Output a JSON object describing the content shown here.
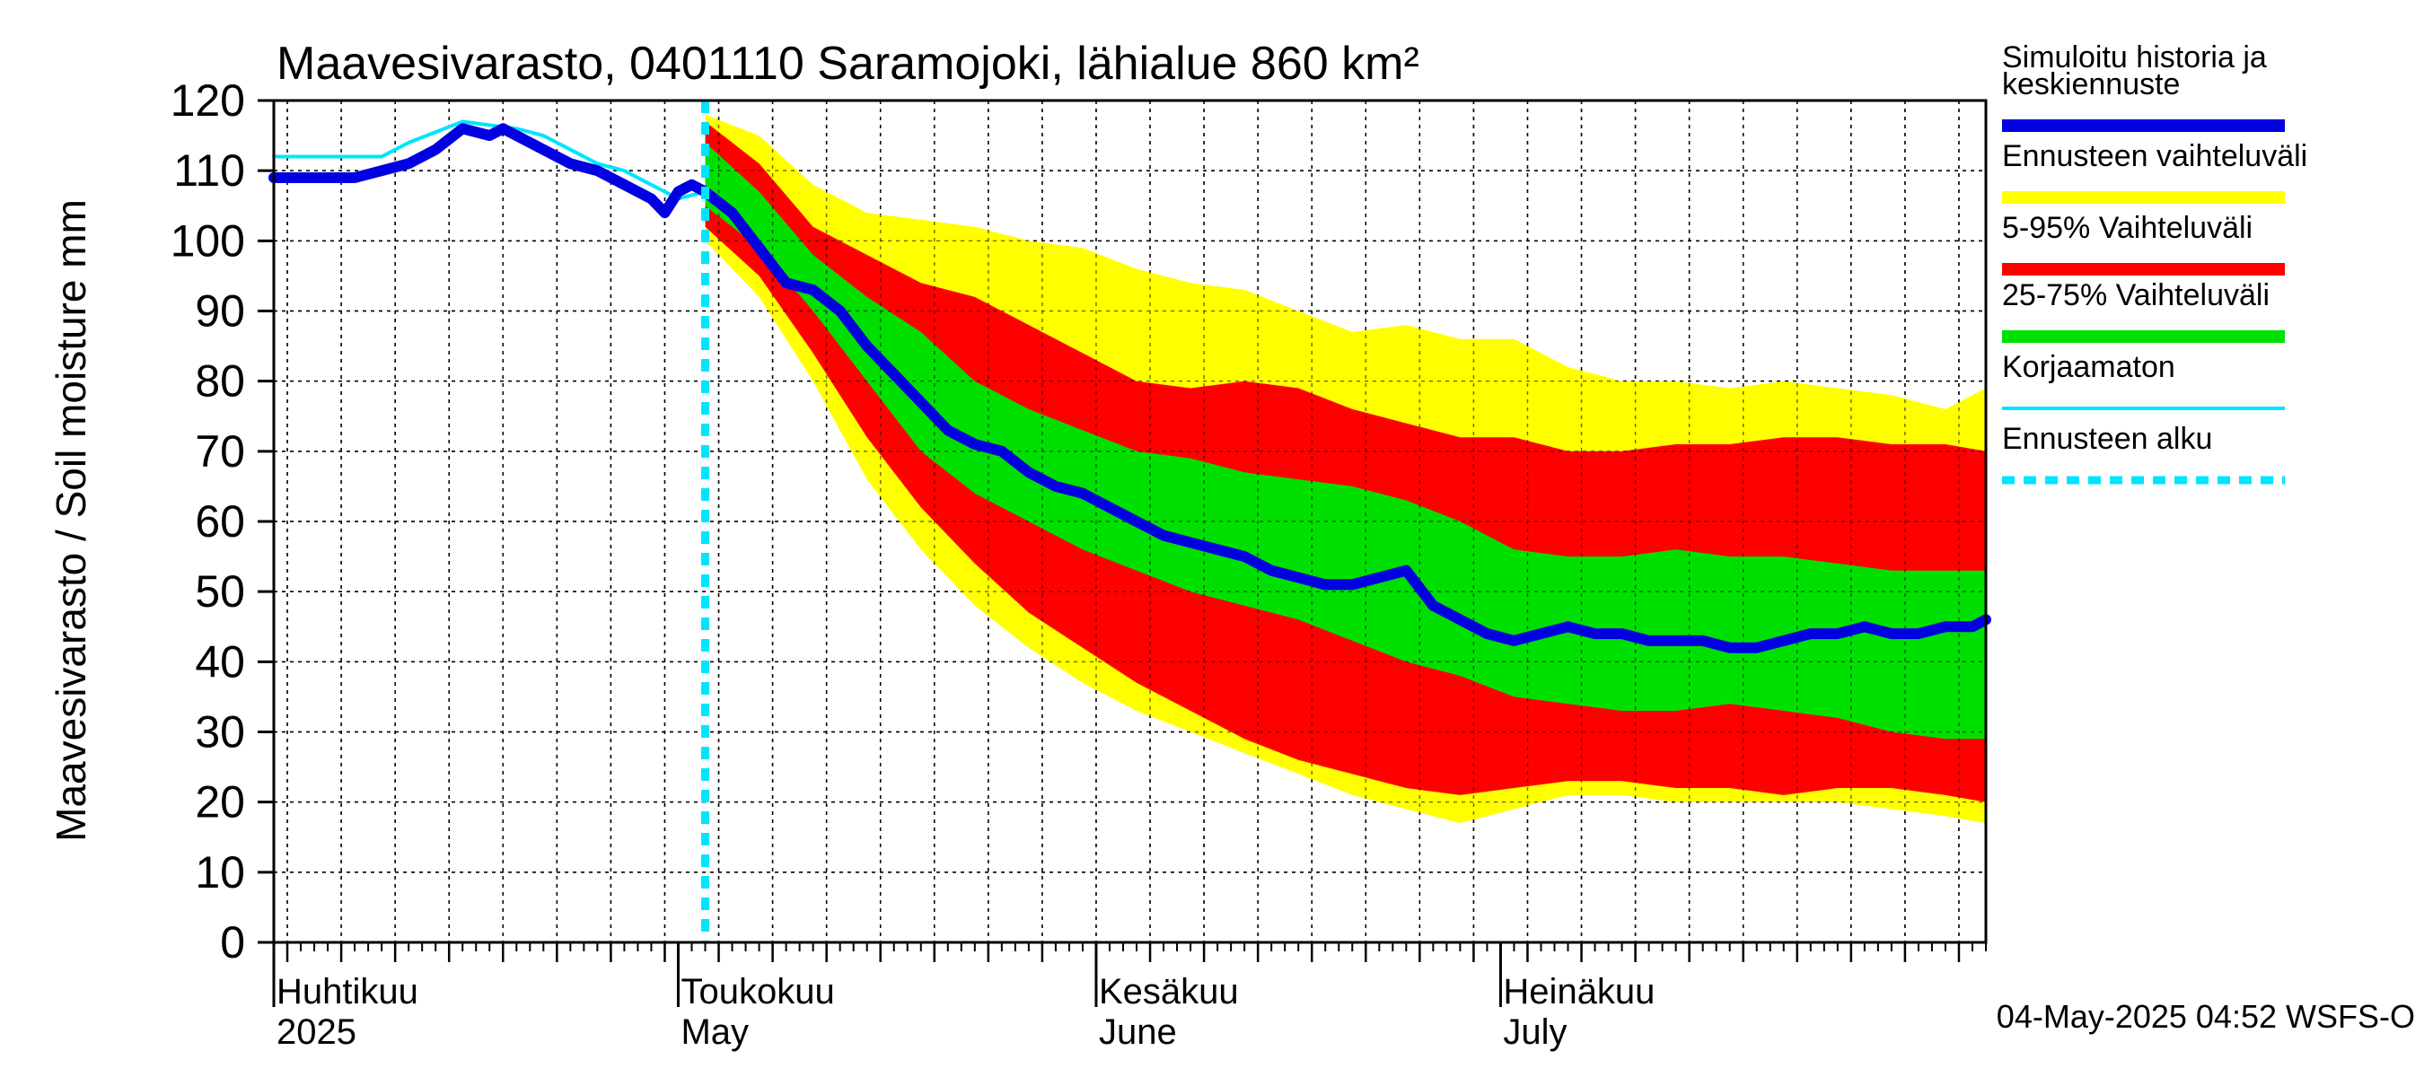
{
  "chart_data": {
    "type": "area",
    "title": "Maavesivarasto, 0401110 Saramojoki, lähialue 860 km²",
    "ylabel": "Maavesivarasto / Soil moisture   mm",
    "xlabel": "",
    "ylim": [
      0,
      120
    ],
    "yticks": [
      0,
      10,
      20,
      30,
      40,
      50,
      60,
      70,
      80,
      90,
      100,
      110,
      120
    ],
    "grid": true,
    "x_unit": "day index from 2025-03-30",
    "xlim": [
      0,
      127
    ],
    "month_labels": [
      {
        "day": 0,
        "fi": "Huhtikuu",
        "en": "2025"
      },
      {
        "day": 30,
        "fi": "Toukokuu",
        "en": "May"
      },
      {
        "day": 61,
        "fi": "Kesäkuu",
        "en": "June"
      },
      {
        "day": 91,
        "fi": "Heinäkuu",
        "en": "July"
      }
    ],
    "forecast_start_day": 32,
    "legend_position": "right",
    "legend": [
      {
        "label": "Simuloitu historia ja keskiennuste",
        "color": "#0000e0",
        "style": "thick"
      },
      {
        "label": "Ennusteen vaihteluväli",
        "color": "#ffff00",
        "style": "thick"
      },
      {
        "label": "5-95% Vaihteluväli",
        "color": "#ff0000",
        "style": "thick"
      },
      {
        "label": "25-75% Vaihteluväli",
        "color": "#00e000",
        "style": "thick"
      },
      {
        "label": "Korjaamaton",
        "color": "#00e5ff",
        "style": "thin"
      },
      {
        "label": "Ennusteen alku",
        "color": "#00e5ff",
        "style": "dashed"
      }
    ],
    "series": [
      {
        "name": "Ennusteen vaihteluväli",
        "kind": "band",
        "color": "#ffff00",
        "x": [
          32,
          36,
          40,
          44,
          48,
          52,
          56,
          60,
          64,
          68,
          72,
          76,
          80,
          84,
          88,
          92,
          96,
          100,
          104,
          108,
          112,
          116,
          120,
          124,
          127
        ],
        "upper": [
          118,
          115,
          108,
          104,
          103,
          102,
          100,
          99,
          96,
          94,
          93,
          90,
          87,
          88,
          86,
          86,
          82,
          80,
          80,
          79,
          80,
          79,
          78,
          76,
          79
        ],
        "lower": [
          100,
          92,
          80,
          66,
          56,
          48,
          42,
          37,
          33,
          30,
          27,
          24,
          21,
          19,
          17,
          19,
          21,
          21,
          20,
          20,
          20,
          20,
          19,
          18,
          17
        ]
      },
      {
        "name": "5-95% Vaihteluväli",
        "kind": "band",
        "color": "#ff0000",
        "x": [
          32,
          36,
          40,
          44,
          48,
          52,
          56,
          60,
          64,
          68,
          72,
          76,
          80,
          84,
          88,
          92,
          96,
          100,
          104,
          108,
          112,
          116,
          120,
          124,
          127
        ],
        "upper": [
          117,
          111,
          102,
          98,
          94,
          92,
          88,
          84,
          80,
          79,
          80,
          79,
          76,
          74,
          72,
          72,
          70,
          70,
          71,
          71,
          72,
          72,
          71,
          71,
          70
        ],
        "lower": [
          102,
          95,
          84,
          72,
          62,
          54,
          47,
          42,
          37,
          33,
          29,
          26,
          24,
          22,
          21,
          22,
          23,
          23,
          22,
          22,
          21,
          22,
          22,
          21,
          20
        ]
      },
      {
        "name": "25-75% Vaihteluväli",
        "kind": "band",
        "color": "#00e000",
        "x": [
          32,
          36,
          40,
          44,
          48,
          52,
          56,
          60,
          64,
          68,
          72,
          76,
          80,
          84,
          88,
          92,
          96,
          100,
          104,
          108,
          112,
          116,
          120,
          124,
          127
        ],
        "upper": [
          114,
          107,
          98,
          92,
          87,
          80,
          76,
          73,
          70,
          69,
          67,
          66,
          65,
          63,
          60,
          56,
          55,
          55,
          56,
          55,
          55,
          54,
          53,
          53,
          53
        ],
        "lower": [
          105,
          99,
          90,
          80,
          70,
          64,
          60,
          56,
          53,
          50,
          48,
          46,
          43,
          40,
          38,
          35,
          34,
          33,
          33,
          34,
          33,
          32,
          30,
          29,
          29
        ]
      },
      {
        "name": "Korjaamaton",
        "kind": "line",
        "color": "#00e5ff",
        "x": [
          0,
          4,
          8,
          10,
          14,
          18,
          20,
          22,
          24,
          26,
          28,
          30,
          32
        ],
        "y": [
          112,
          112,
          112,
          114,
          117,
          116,
          115,
          113,
          111,
          110,
          108,
          106,
          107
        ]
      },
      {
        "name": "Simuloitu historia ja keskiennuste",
        "kind": "line",
        "color": "#0000e0",
        "x": [
          0,
          2,
          4,
          6,
          8,
          10,
          12,
          14,
          16,
          17,
          18,
          20,
          22,
          24,
          26,
          28,
          29,
          30,
          31,
          32,
          34,
          36,
          38,
          40,
          42,
          44,
          46,
          48,
          50,
          52,
          54,
          56,
          58,
          60,
          62,
          64,
          66,
          68,
          70,
          72,
          74,
          76,
          78,
          80,
          82,
          84,
          86,
          88,
          90,
          92,
          94,
          96,
          98,
          100,
          102,
          104,
          106,
          108,
          110,
          112,
          114,
          116,
          118,
          120,
          122,
          124,
          126,
          127
        ],
        "y": [
          109,
          109,
          109,
          109,
          110,
          111,
          113,
          116,
          115,
          116,
          115,
          113,
          111,
          110,
          108,
          106,
          104,
          107,
          108,
          107,
          104,
          99,
          94,
          93,
          90,
          85,
          81,
          77,
          73,
          71,
          70,
          67,
          65,
          64,
          62,
          60,
          58,
          57,
          56,
          55,
          53,
          52,
          51,
          51,
          52,
          53,
          48,
          46,
          44,
          43,
          44,
          45,
          44,
          44,
          43,
          43,
          43,
          42,
          42,
          43,
          44,
          44,
          45,
          44,
          44,
          45,
          45,
          46
        ]
      }
    ],
    "footer": "04-May-2025 04:52 WSFS-O"
  }
}
